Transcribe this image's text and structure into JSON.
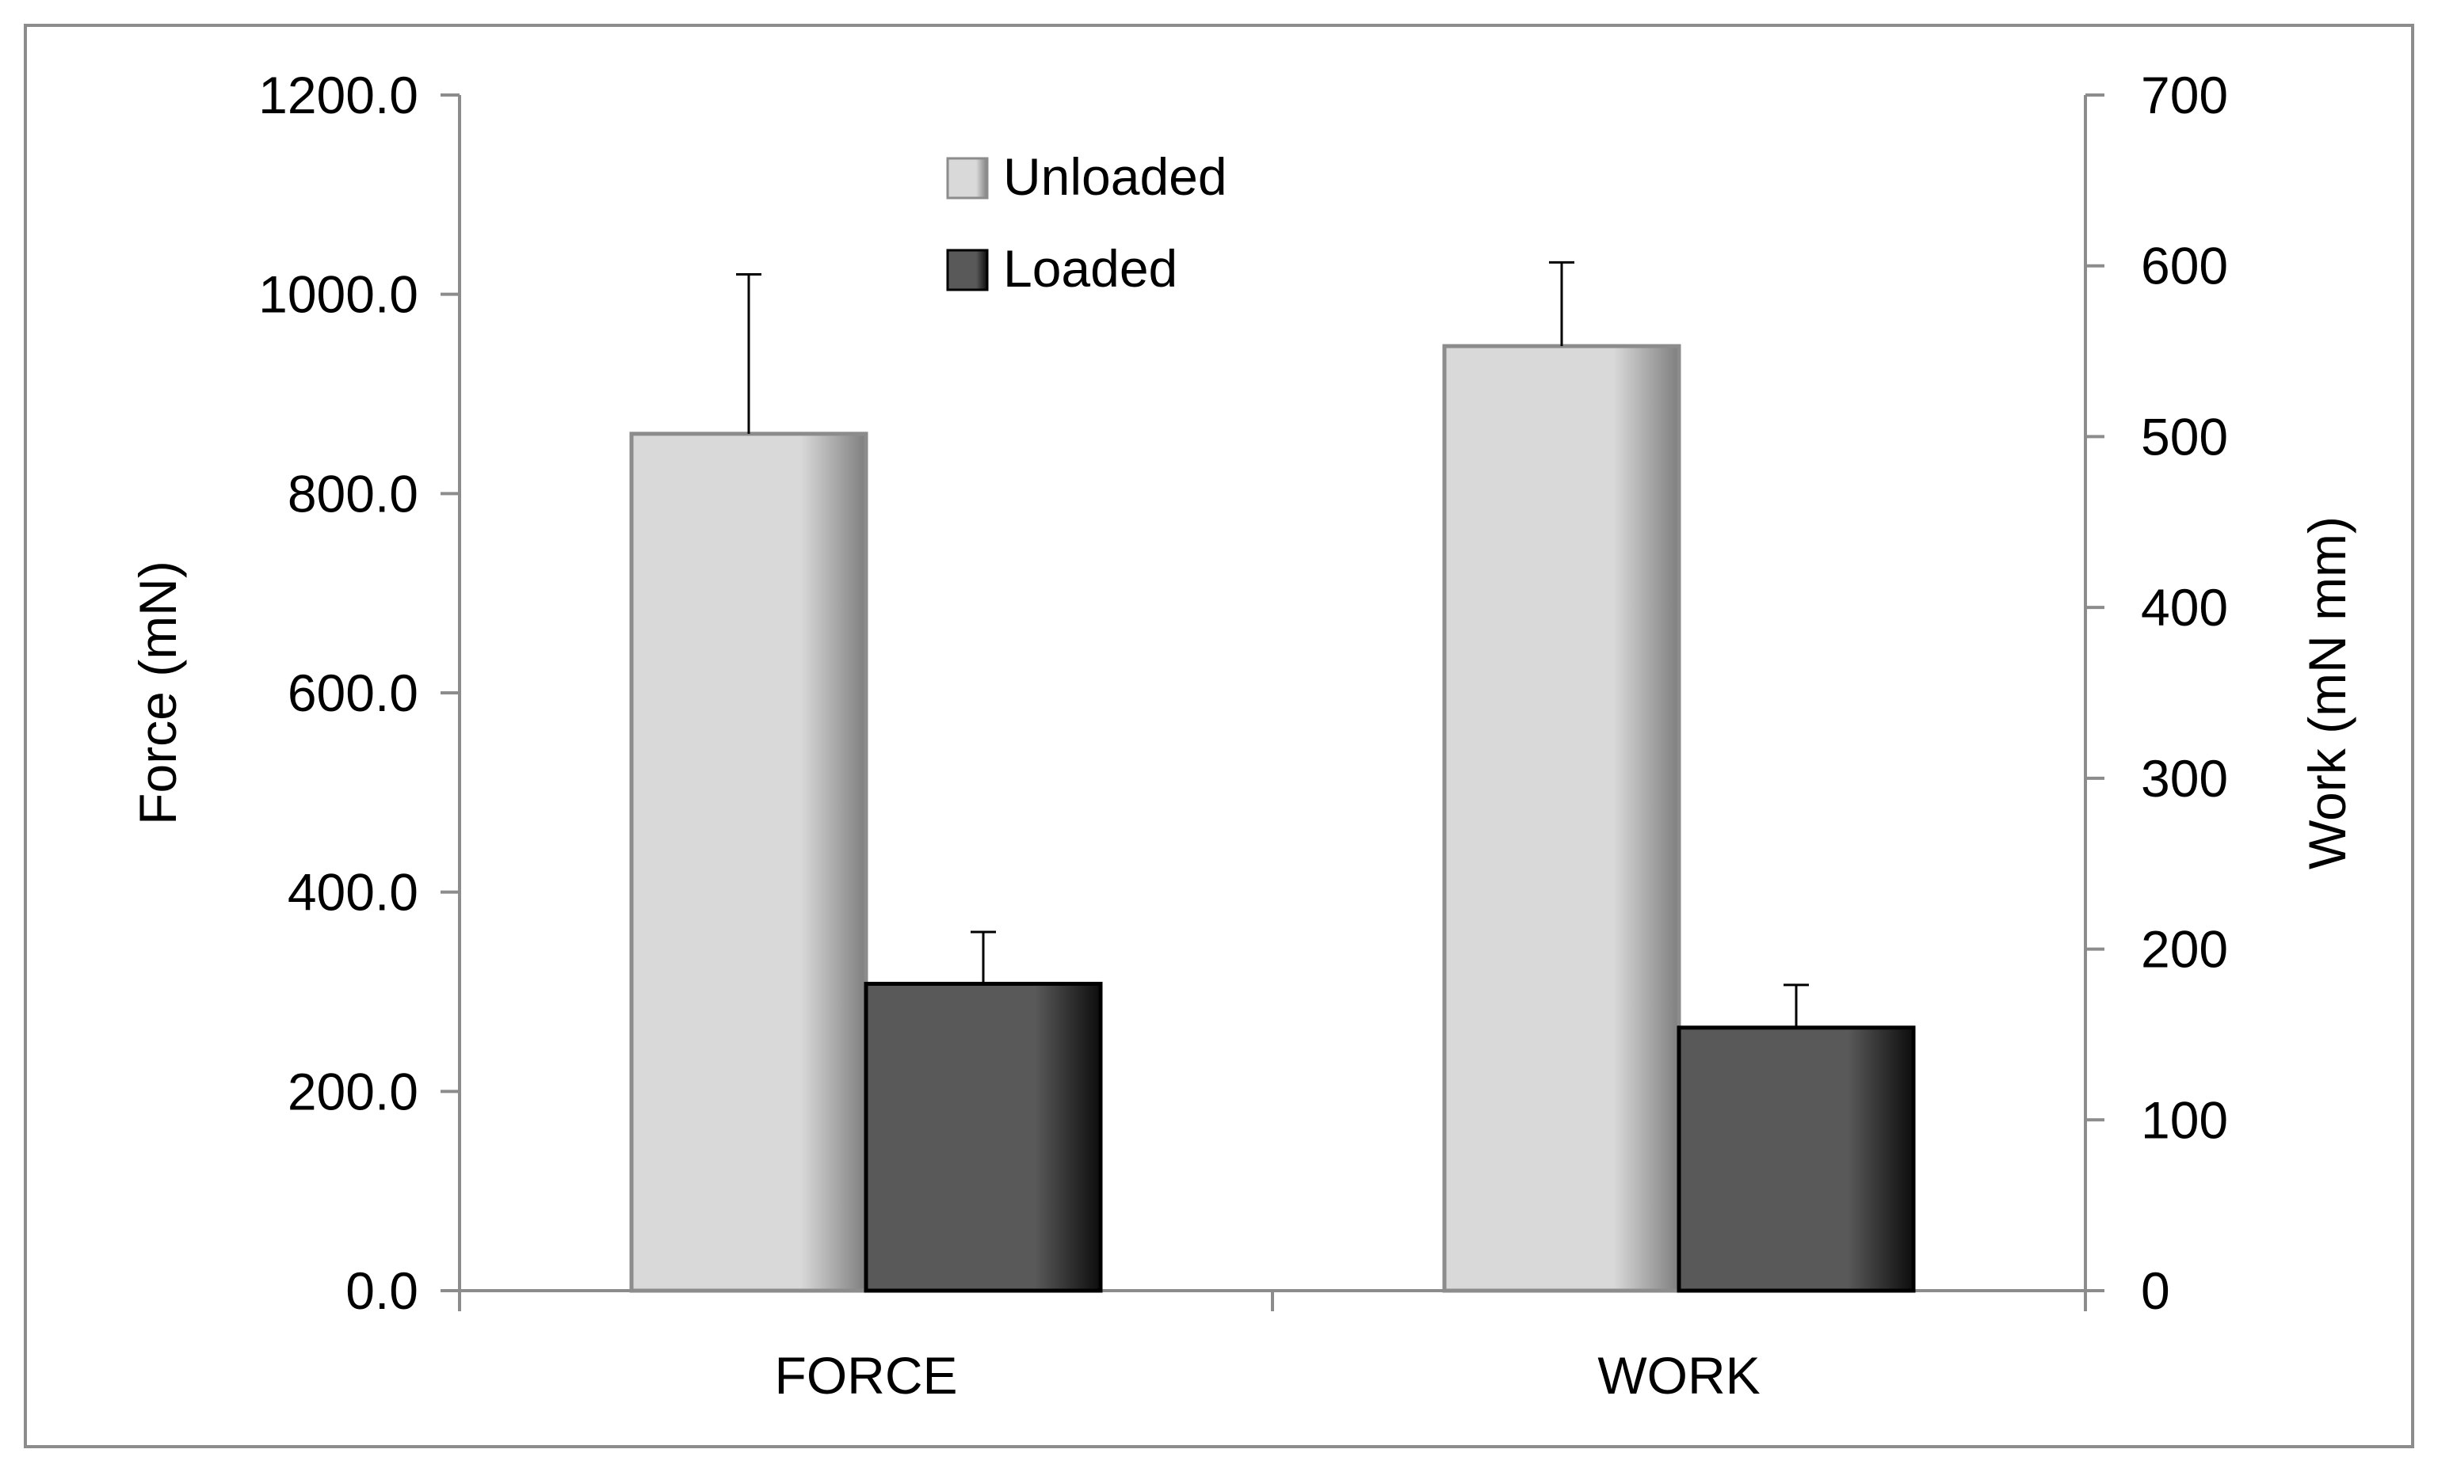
{
  "chart_data": {
    "type": "bar",
    "categories": [
      "FORCE",
      "WORK"
    ],
    "series": [
      {
        "name": "Unloaded",
        "color": "#d9d9d9",
        "shade": "#7f7f7f",
        "values": [
          860.0,
          553.0
        ],
        "errors": [
          160.0,
          49.0
        ],
        "axis": [
          "left",
          "right"
        ]
      },
      {
        "name": "Loaded",
        "color": "#595959",
        "shade": "#0d0d0d",
        "values": [
          308.0,
          154.0
        ],
        "errors": [
          52.0,
          25.0
        ],
        "axis": [
          "left",
          "right"
        ]
      }
    ],
    "y_left": {
      "label": "Force  (mN)",
      "ticks": [
        "0.0",
        "200.0",
        "400.0",
        "600.0",
        "800.0",
        "1000.0",
        "1200.0"
      ],
      "range": [
        0,
        1200
      ]
    },
    "y_right": {
      "label": "Work (mN mm)",
      "ticks": [
        "0",
        "100",
        "200",
        "300",
        "400",
        "500",
        "600",
        "700"
      ],
      "range": [
        0,
        700
      ]
    },
    "legend": {
      "position": "top-center"
    },
    "grid": false
  }
}
